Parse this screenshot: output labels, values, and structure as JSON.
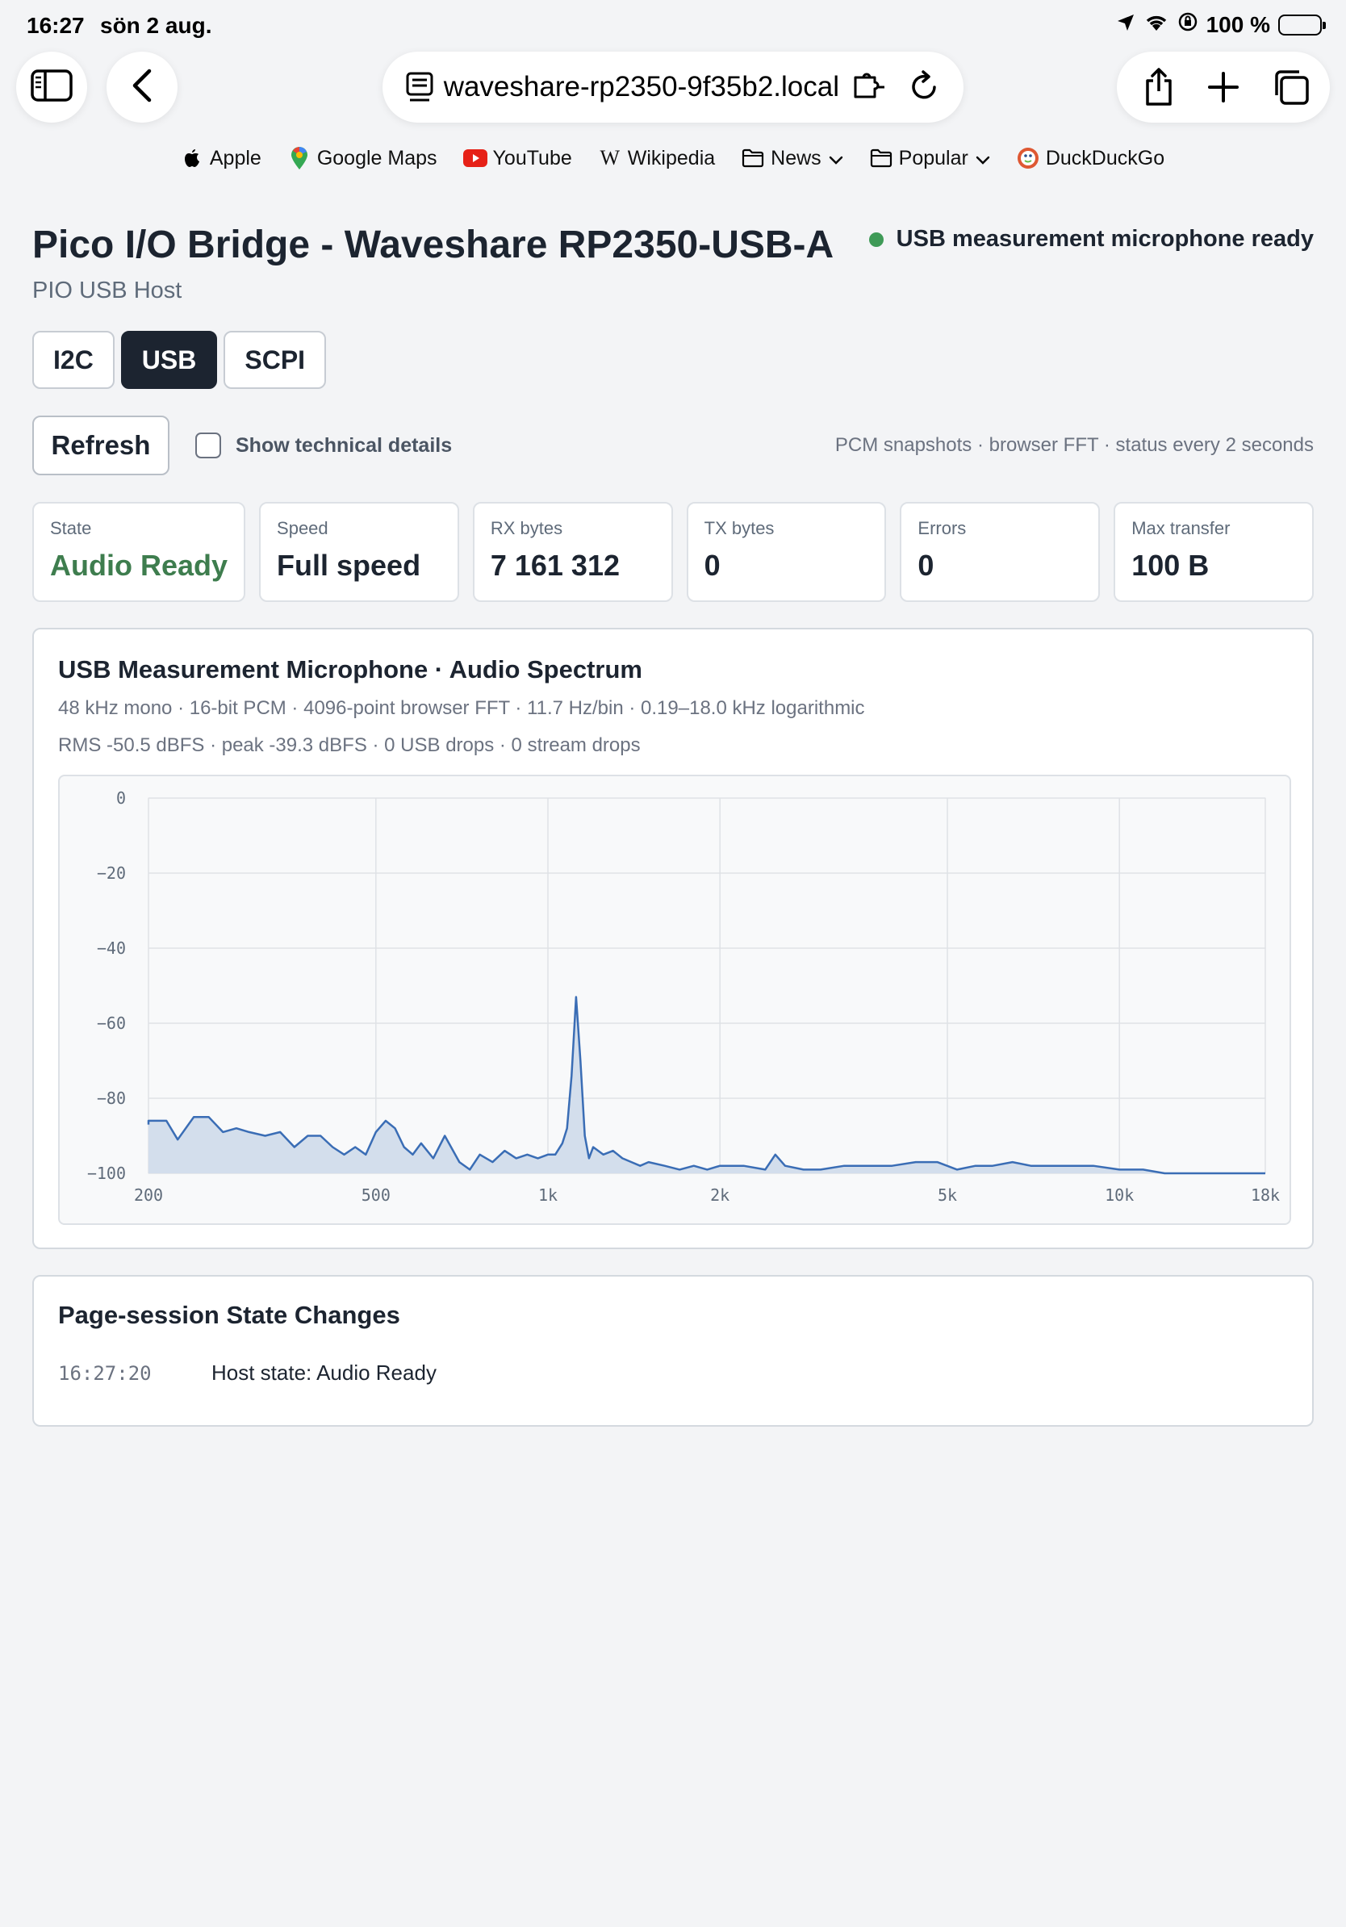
{
  "status_bar": {
    "time": "16:27",
    "date": "sön 2 aug.",
    "battery": "100 %"
  },
  "browser": {
    "url": "waveshare-rp2350-9f35b2.local",
    "favorites": [
      {
        "label": "Apple",
        "icon": "apple-icon"
      },
      {
        "label": "Google Maps",
        "icon": "maps-pin-icon"
      },
      {
        "label": "YouTube",
        "icon": "youtube-icon"
      },
      {
        "label": "Wikipedia",
        "icon": "wikipedia-icon"
      },
      {
        "label": "News",
        "icon": "folder-icon"
      },
      {
        "label": "Popular",
        "icon": "folder-icon"
      },
      {
        "label": "DuckDuckGo",
        "icon": "duckduckgo-icon"
      }
    ]
  },
  "header": {
    "title": "Pico I/O Bridge - Waveshare RP2350-USB-A",
    "subtitle": "PIO USB Host",
    "status": "USB measurement microphone ready",
    "status_color": "#3e9a57"
  },
  "tabs": [
    {
      "label": "I2C",
      "active": false
    },
    {
      "label": "USB",
      "active": true
    },
    {
      "label": "SCPI",
      "active": false
    }
  ],
  "controls": {
    "refresh_label": "Refresh",
    "tech_details_label": "Show technical details",
    "tech_details_checked": false,
    "poll_note": "PCM snapshots · browser FFT · status every 2 seconds"
  },
  "stats": [
    {
      "label": "State",
      "value": "Audio Ready"
    },
    {
      "label": "Speed",
      "value": "Full speed"
    },
    {
      "label": "RX bytes",
      "value": "7 161 312"
    },
    {
      "label": "TX bytes",
      "value": "0"
    },
    {
      "label": "Errors",
      "value": "0"
    },
    {
      "label": "Max transfer",
      "value": "100 B"
    }
  ],
  "spectrum_panel": {
    "title": "USB Measurement Microphone · Audio Spectrum",
    "line1": "48 kHz mono · 16-bit PCM · 4096-point browser FFT · 11.7 Hz/bin · 0.19–18.0 kHz logarithmic",
    "line2": "RMS -50.5 dBFS · peak -39.3 dBFS · 0 USB drops · 0 stream drops"
  },
  "chart_data": {
    "type": "area",
    "x_scale": "log",
    "xlim": [
      190,
      18000
    ],
    "ylim": [
      -100,
      0
    ],
    "x_ticks": [
      200,
      500,
      1000,
      2000,
      5000,
      10000,
      18000
    ],
    "x_tick_labels": [
      "200",
      "500",
      "1k",
      "2k",
      "5k",
      "10k",
      "18k"
    ],
    "y_ticks": [
      0,
      -20,
      -40,
      -60,
      -80,
      -100
    ],
    "y_tick_labels": [
      "0",
      "−20",
      "−40",
      "−60",
      "−80",
      "−100"
    ],
    "grid": true,
    "line_color": "#3a6db5",
    "fill_color": "#d3deec",
    "series": [
      {
        "x": [
          190,
          200,
          215,
          225,
          240,
          255,
          270,
          285,
          300,
          320,
          340,
          360,
          380,
          400,
          420,
          440,
          460,
          480,
          500,
          520,
          540,
          560,
          580,
          600,
          630,
          660,
          700,
          730,
          760,
          800,
          840,
          880,
          920,
          960,
          1000,
          1030,
          1060,
          1080,
          1100,
          1120,
          1140,
          1160,
          1180,
          1200,
          1250,
          1300,
          1350,
          1400,
          1450,
          1500,
          1600,
          1700,
          1800,
          1900,
          2000,
          2200,
          2400,
          2500,
          2600,
          2800,
          3000,
          3300,
          3600,
          4000,
          4400,
          4800,
          5200,
          5600,
          6000,
          6500,
          7000,
          7500,
          8000,
          9000,
          10000,
          11000,
          12000,
          14000,
          16000,
          18000
        ],
        "y": [
          -87,
          -86,
          -86,
          -91,
          -85,
          -85,
          -89,
          -88,
          -89,
          -90,
          -89,
          -93,
          -90,
          -90,
          -93,
          -95,
          -93,
          -95,
          -89,
          -86,
          -88,
          -93,
          -95,
          -92,
          -96,
          -90,
          -97,
          -99,
          -95,
          -97,
          -94,
          -96,
          -95,
          -96,
          -95,
          -95,
          -92,
          -88,
          -74,
          -53,
          -70,
          -90,
          -96,
          -93,
          -95,
          -94,
          -96,
          -97,
          -98,
          -97,
          -98,
          -99,
          -98,
          -99,
          -98,
          -98,
          -99,
          -95,
          -98,
          -99,
          -99,
          -98,
          -98,
          -98,
          -97,
          -97,
          -99,
          -98,
          -98,
          -97,
          -98,
          -98,
          -98,
          -98,
          -99,
          -99,
          -100,
          -100,
          -100,
          -100
        ]
      }
    ]
  },
  "log_panel": {
    "title": "Page-session State Changes",
    "entries": [
      {
        "time": "16:27:20",
        "message": "Host state: Audio Ready"
      }
    ]
  }
}
